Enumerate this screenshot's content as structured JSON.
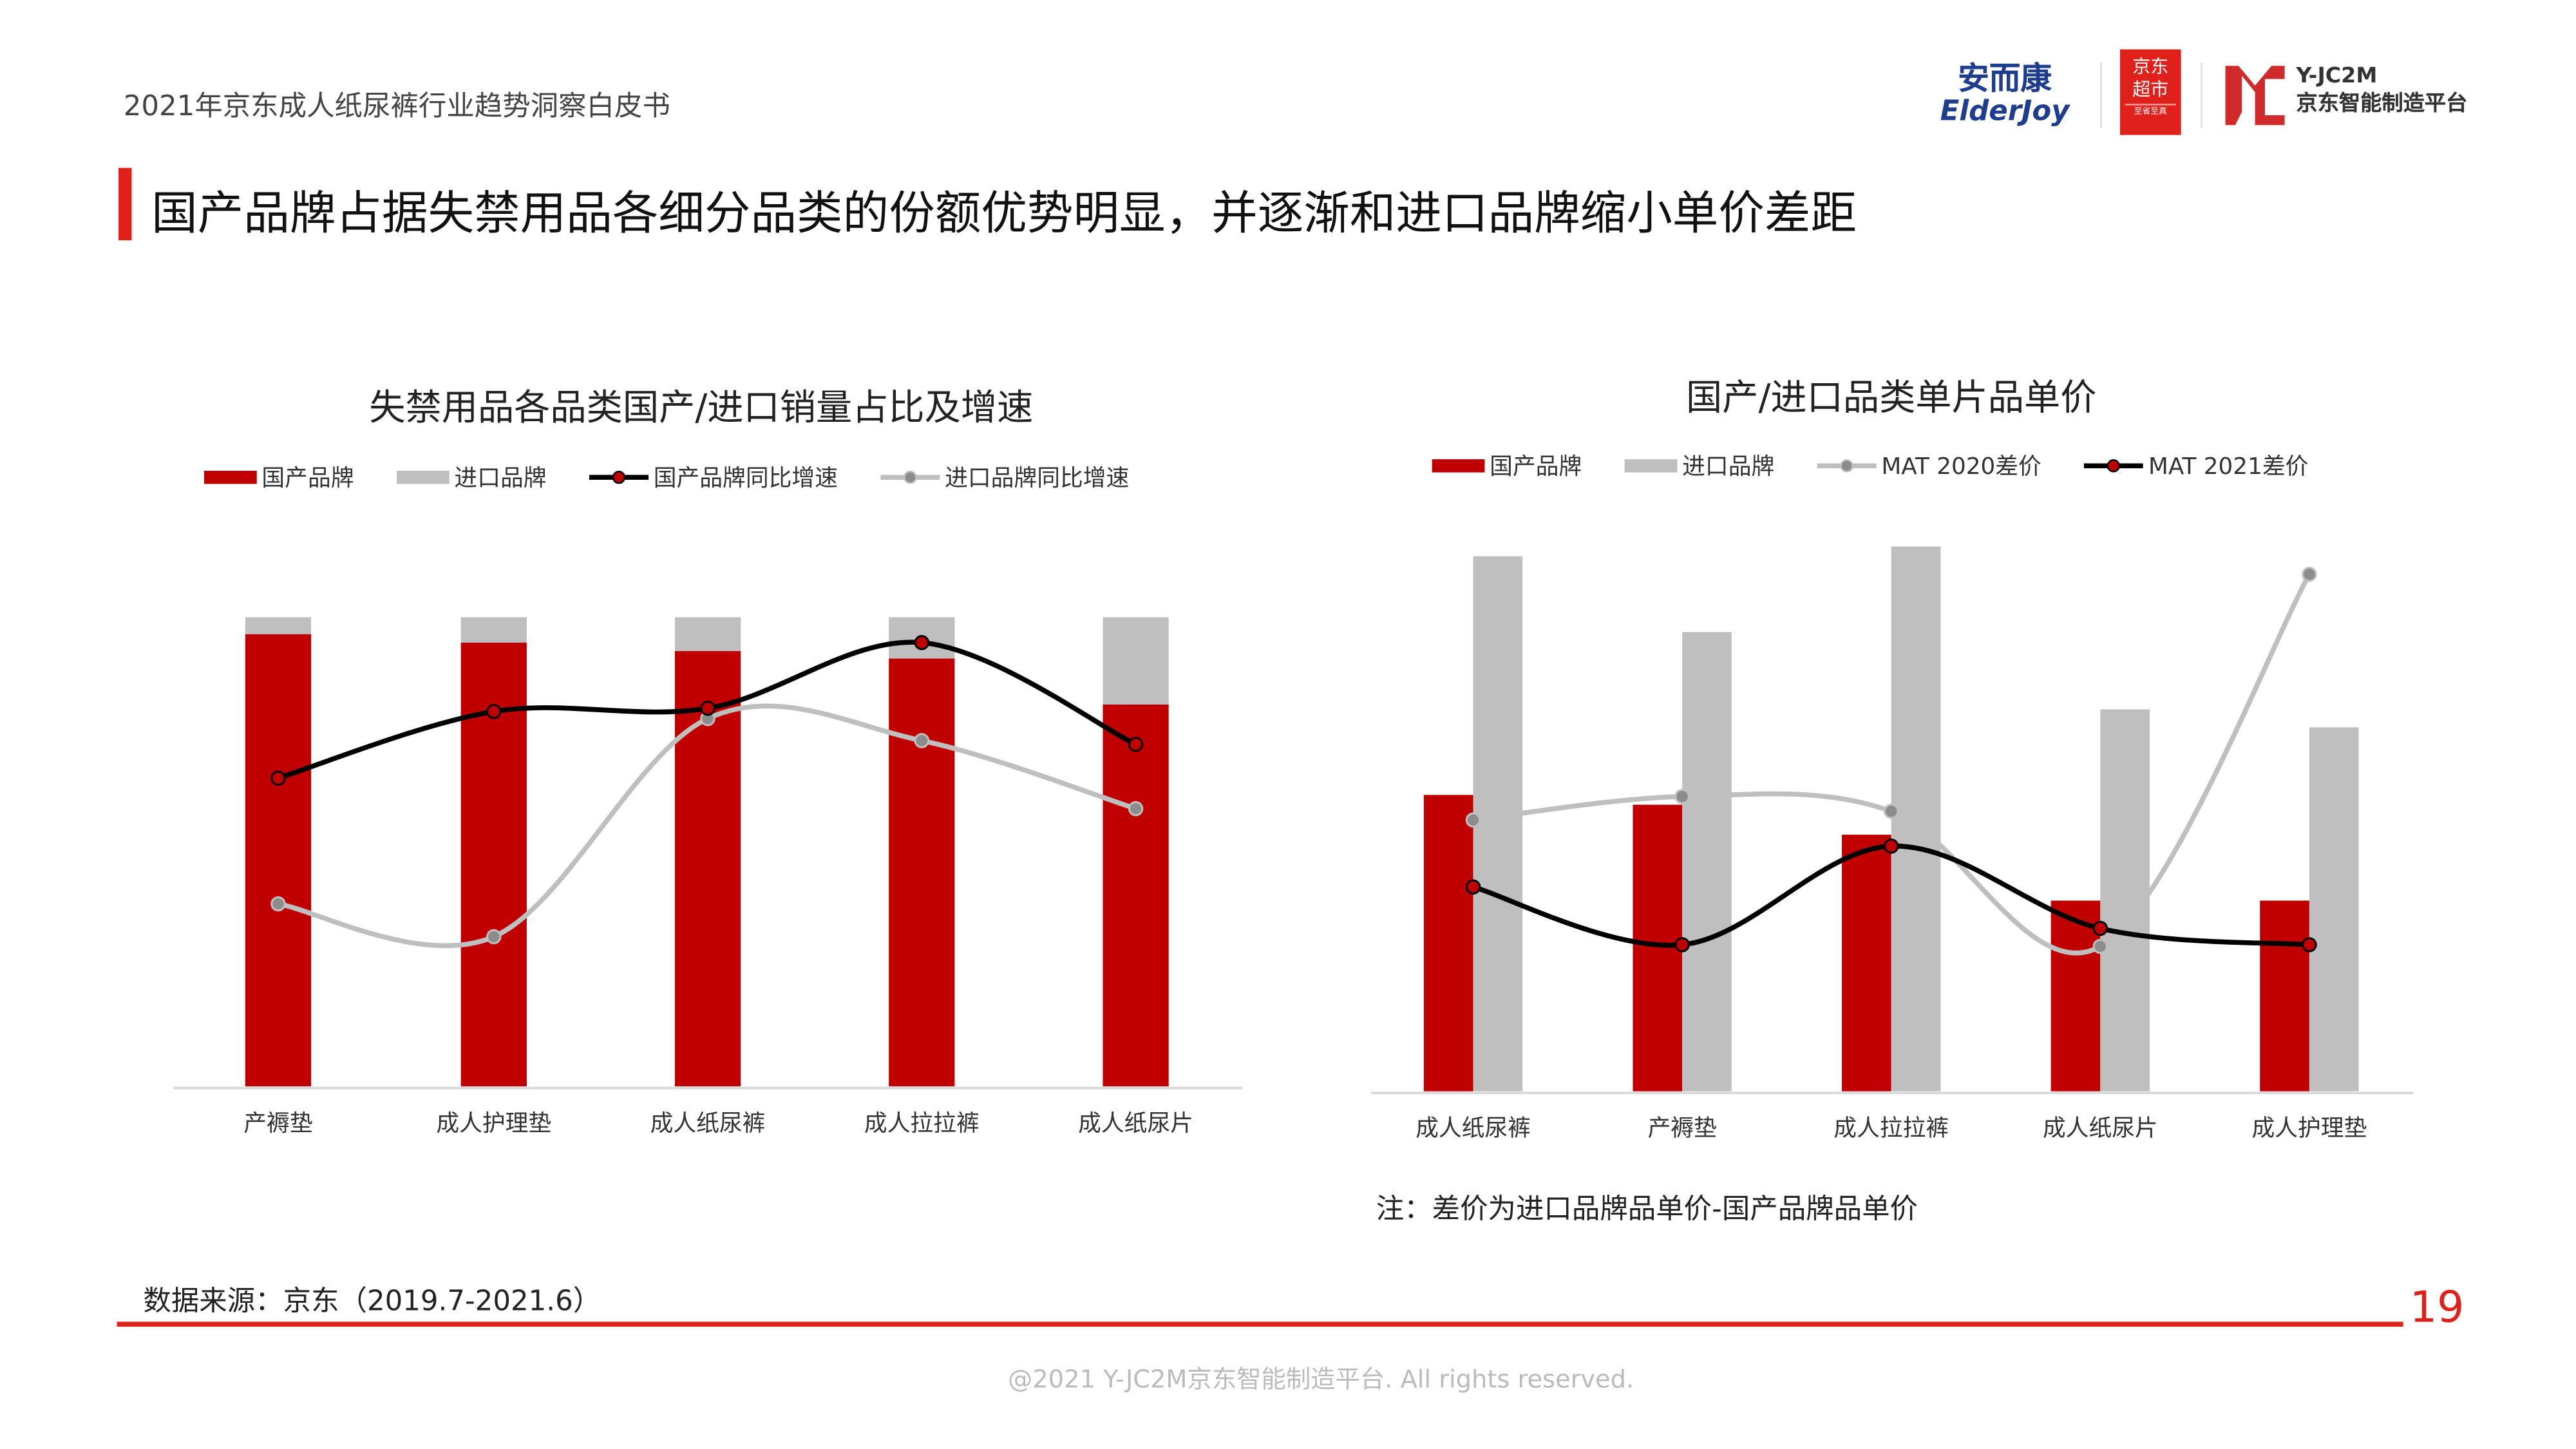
{
  "header": {
    "doc_title": "2021年京东成人纸尿裤行业趋势洞察白皮书",
    "headline": "国产品牌占据失禁用品各细分品类的份额优势明显，并逐渐和进口品牌缩小单价差距",
    "logos": {
      "elderjoy_cn": "安而康",
      "elderjoy_en": "ElderJoy",
      "jd_line1": "京东",
      "jd_line2": "超市",
      "jd_slogan": "至省至真",
      "yjc2m_en": "Y-JC2M",
      "yjc2m_cn": "京东智能制造平台"
    }
  },
  "colors": {
    "accent": "#e0201b",
    "domestic": "#c00000",
    "imported": "#bfbfbf",
    "line_dark": "#000000",
    "line_light": "#bfbfbf"
  },
  "chart_data": [
    {
      "type": "bar",
      "stacked": true,
      "title": "失禁用品各品类国产/进口销量占比及增速",
      "categories": [
        "产褥垫",
        "成人护理垫",
        "成人纸尿裤",
        "成人拉拉裤",
        "成人纸尿片"
      ],
      "series": [
        {
          "name": "国产品牌",
          "kind": "bar",
          "values": [
            96.4,
            94.6,
            92.8,
            91.2,
            81.4
          ]
        },
        {
          "name": "进口品牌",
          "kind": "bar",
          "values": [
            3.6,
            5.4,
            7.2,
            8.8,
            18.6
          ]
        },
        {
          "name": "国产品牌同比增速",
          "kind": "line",
          "values": [
            65.7,
            79.9,
            80.6,
            94.6,
            72.9
          ]
        },
        {
          "name": "进口品牌同比增速",
          "kind": "line",
          "values": [
            38.9,
            31.9,
            78.4,
            73.7,
            59.2
          ]
        }
      ],
      "ylim": [
        0,
        100
      ],
      "grid": false,
      "legend": "top"
    },
    {
      "type": "bar",
      "title": "国产/进口品类单片品单价",
      "categories": [
        "成人纸尿裤",
        "产褥垫",
        "成人拉拉裤",
        "成人纸尿片",
        "成人护理垫"
      ],
      "series": [
        {
          "name": "国产品牌",
          "kind": "bar",
          "values": [
            54.4,
            52.6,
            47.1,
            35.0,
            35.0
          ]
        },
        {
          "name": "进口品牌",
          "kind": "bar",
          "values": [
            98.2,
            84.3,
            100,
            70.1,
            66.8
          ]
        },
        {
          "name": "MAT 2020差价",
          "kind": "line",
          "values": [
            49.8,
            54.1,
            51.4,
            26.6,
            94.9
          ]
        },
        {
          "name": "MAT 2021差价",
          "kind": "line",
          "values": [
            37.5,
            26.9,
            45.0,
            29.9,
            26.9
          ]
        }
      ],
      "ylim": [
        0,
        100
      ],
      "grid": false,
      "legend": "top"
    }
  ],
  "note": "注：差价为进口品牌品单价-国产品牌品单价",
  "source": "数据来源：京东（2019.7-2021.6）",
  "page_number": "19",
  "footer": "@2021 Y-JC2M京东智能制造平台. All rights reserved."
}
